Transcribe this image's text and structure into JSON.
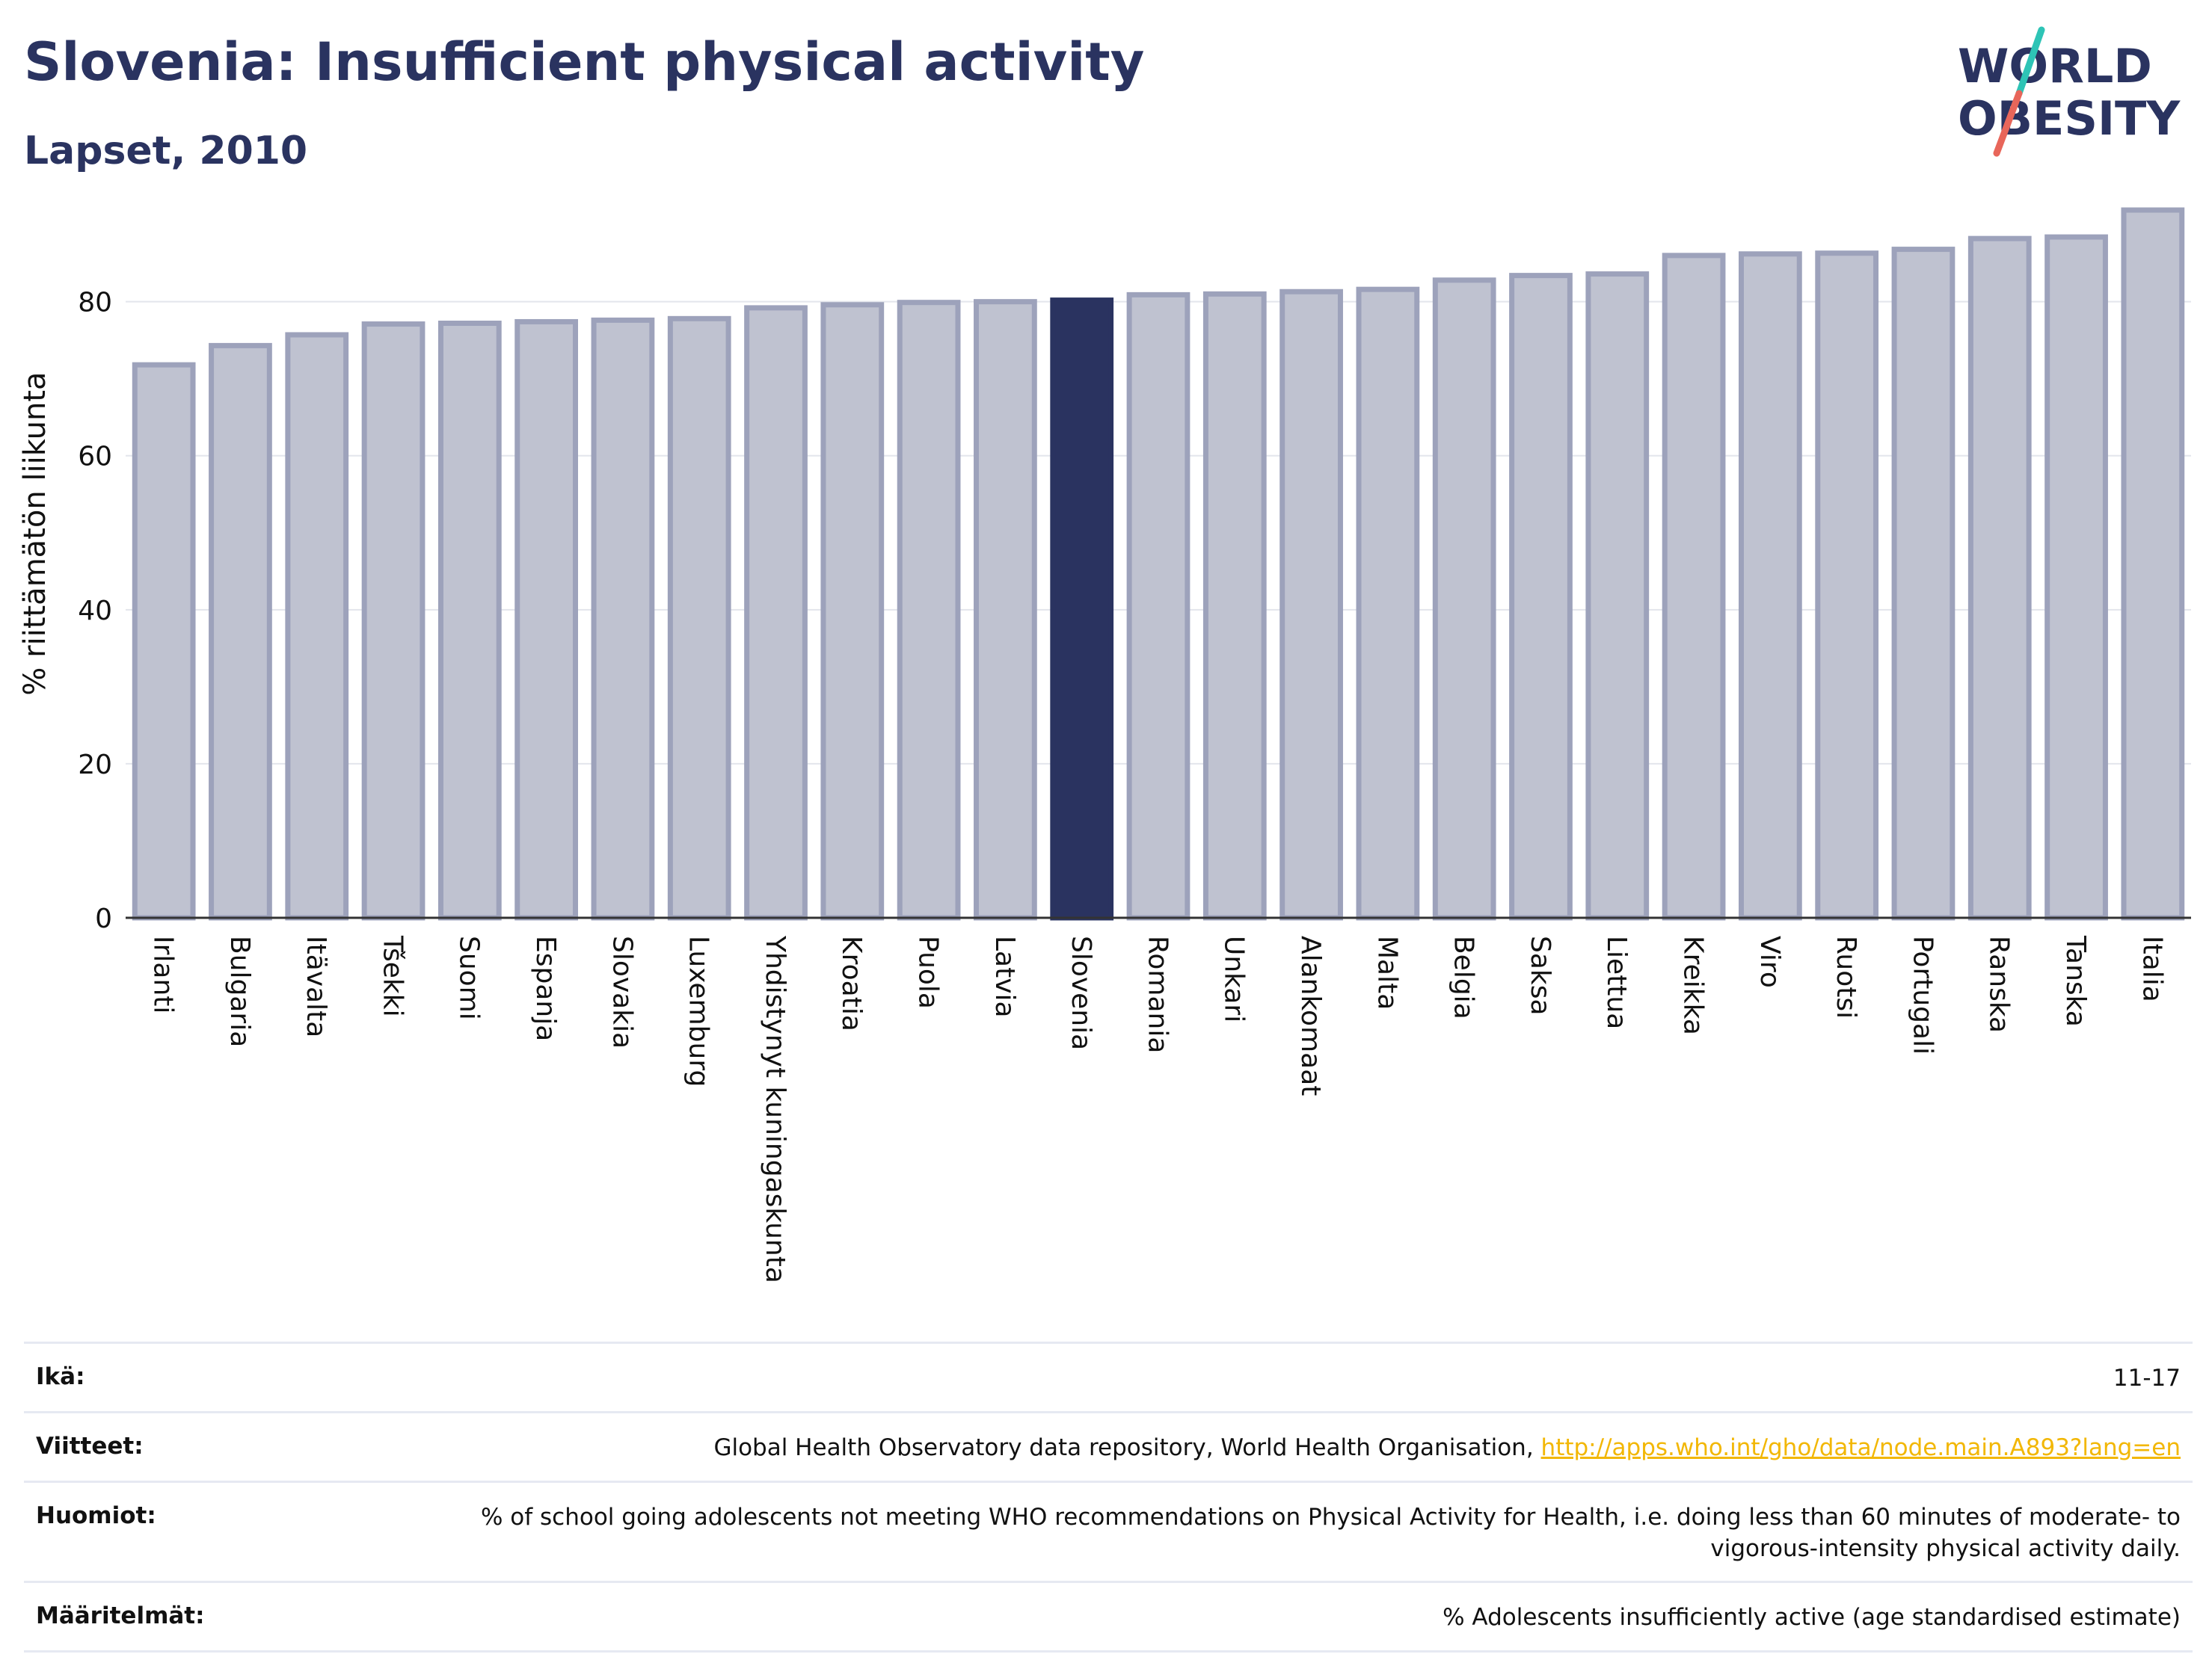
{
  "header": {
    "title": "Slovenia: Insufficient physical activity",
    "subtitle": "Lapset, 2010"
  },
  "logo": {
    "line1": "WORLD",
    "line2": "OBESITY",
    "colors": {
      "text": "#2a3360",
      "slash_top": "#2ec4b6",
      "slash_bottom": "#e8665a"
    }
  },
  "chart_data": {
    "type": "bar",
    "ylabel": "% riittämätön liikunta",
    "ylim": [
      0,
      92
    ],
    "yticks": [
      0,
      20,
      40,
      60,
      80
    ],
    "grid": true,
    "highlight": "Slovenia",
    "colors": {
      "bar": "#bfc2d0",
      "bar_border": "#9da2bb",
      "highlight": "#2a3360",
      "grid": "#e3e5ec",
      "axis": "#333333"
    },
    "categories": [
      "Irlanti",
      "Bulgaria",
      "Itävalta",
      "Tšekki",
      "Suomi",
      "Espanja",
      "Slovakia",
      "Luxemburg",
      "Yhdistynyt kuningaskunta",
      "Kroatia",
      "Puola",
      "Latvia",
      "Slovenia",
      "Romania",
      "Unkari",
      "Alankomaat",
      "Malta",
      "Belgia",
      "Saksa",
      "Liettua",
      "Kreikka",
      "Viro",
      "Ruotsi",
      "Portugali",
      "Ranska",
      "Tanska",
      "Italia"
    ],
    "values": [
      71.8,
      74.3,
      75.7,
      77.1,
      77.2,
      77.4,
      77.6,
      77.8,
      79.2,
      79.6,
      79.9,
      80.0,
      80.2,
      80.9,
      81.0,
      81.3,
      81.6,
      82.8,
      83.4,
      83.6,
      86.0,
      86.2,
      86.3,
      86.8,
      88.2,
      88.4,
      91.9
    ]
  },
  "info": {
    "rows": [
      {
        "label": "Ikä:",
        "value": "11-17"
      },
      {
        "label": "Viitteet:",
        "value": "Global Health Observatory data repository, World Health Organisation, ",
        "link": "http://apps.who.int/gho/data/node.main.A893?lang=en"
      },
      {
        "label": "Huomiot:",
        "value": "% of school going adolescents not meeting WHO recommendations on Physical Activity for Health, i.e. doing less than 60 minutes of moderate- to vigorous-intensity physical activity daily."
      },
      {
        "label": "Määritelmät:",
        "value": "% Adolescents insufficiently active (age standardised estimate)"
      }
    ]
  }
}
